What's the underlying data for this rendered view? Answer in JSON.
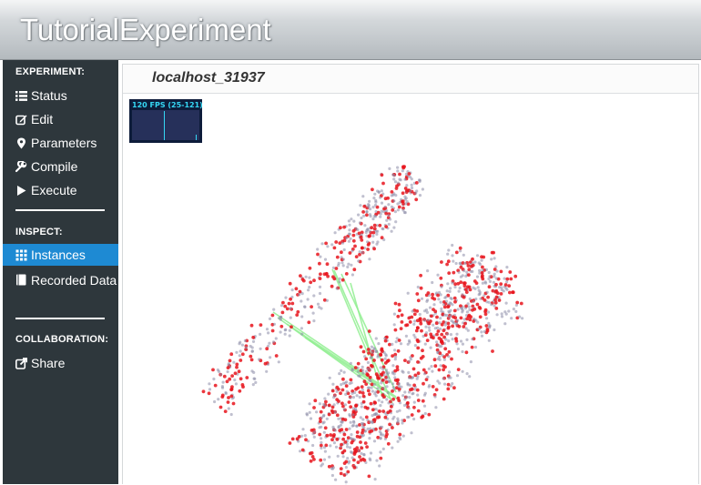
{
  "header": {
    "title": "TutorialExperiment"
  },
  "sidebar": {
    "sections": [
      {
        "label": "EXPERIMENT:"
      },
      {
        "label": "INSPECT:"
      },
      {
        "label": "COLLABORATION:"
      }
    ],
    "items": [
      {
        "label": "Status",
        "icon": "list-icon"
      },
      {
        "label": "Edit",
        "icon": "edit-icon"
      },
      {
        "label": "Parameters",
        "icon": "map-marker-icon"
      },
      {
        "label": "Compile",
        "icon": "wrench-icon"
      },
      {
        "label": "Execute",
        "icon": "play-icon"
      },
      {
        "label": "Instances",
        "icon": "grid-icon",
        "active": true
      },
      {
        "label": "Recorded Data",
        "icon": "book-icon"
      },
      {
        "label": "Share",
        "icon": "share-icon"
      }
    ]
  },
  "panel": {
    "title": "localhost_31937"
  },
  "fps_meter": {
    "text": "120 FPS (25-121)"
  },
  "colors": {
    "active_nav": "#1e8ad3",
    "sidebar_bg": "#2e373c",
    "point_red": "#e8141c",
    "point_gray": "#8c8ca8",
    "link_green": "#90ee90"
  }
}
